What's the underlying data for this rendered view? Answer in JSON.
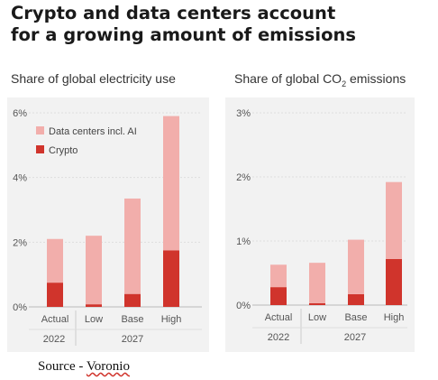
{
  "title_lines": [
    "Crypto and data centers account",
    "for a growing amount of emissions"
  ],
  "source": {
    "prefix": "Source - ",
    "name": "Voronio"
  },
  "colors": {
    "data_centers": "#f2aeab",
    "crypto": "#d0342c",
    "axis_text": "#555555",
    "grid": "#dddddd",
    "panel_bg": "#f2f2f2"
  },
  "chart_data": [
    {
      "type": "bar",
      "stacked": true,
      "subtitle": "Share of global electricity use",
      "categories": [
        "Actual",
        "Low",
        "Base",
        "High"
      ],
      "year_groups": [
        {
          "label": "2022",
          "categories": [
            "Actual"
          ]
        },
        {
          "label": "2027",
          "categories": [
            "Low",
            "Base",
            "High"
          ]
        }
      ],
      "yticks": [
        "0%",
        "2%",
        "4%",
        "6%"
      ],
      "ylim": [
        0,
        6
      ],
      "legend": {
        "placement": "top-left",
        "entries": [
          "Data centers incl. AI",
          "Crypto"
        ]
      },
      "series": [
        {
          "name": "Crypto",
          "values": [
            0.75,
            0.08,
            0.4,
            1.75
          ]
        },
        {
          "name": "Data centers incl. AI",
          "values": [
            1.35,
            2.12,
            2.95,
            4.15
          ]
        }
      ],
      "totals": [
        2.1,
        2.2,
        3.35,
        5.9
      ]
    },
    {
      "type": "bar",
      "stacked": true,
      "subtitle_parts": [
        "Share of global CO",
        "2",
        " emissions"
      ],
      "categories": [
        "Actual",
        "Low",
        "Base",
        "High"
      ],
      "year_groups": [
        {
          "label": "2022",
          "categories": [
            "Actual"
          ]
        },
        {
          "label": "2027",
          "categories": [
            "Low",
            "Base",
            "High"
          ]
        }
      ],
      "yticks": [
        "0%",
        "1%",
        "2%",
        "3%"
      ],
      "ylim": [
        0,
        3
      ],
      "series": [
        {
          "name": "Crypto",
          "values": [
            0.28,
            0.03,
            0.17,
            0.72
          ]
        },
        {
          "name": "Data centers incl. AI",
          "values": [
            0.35,
            0.63,
            0.85,
            1.2
          ]
        }
      ],
      "totals": [
        0.63,
        0.66,
        1.02,
        1.92
      ]
    }
  ]
}
